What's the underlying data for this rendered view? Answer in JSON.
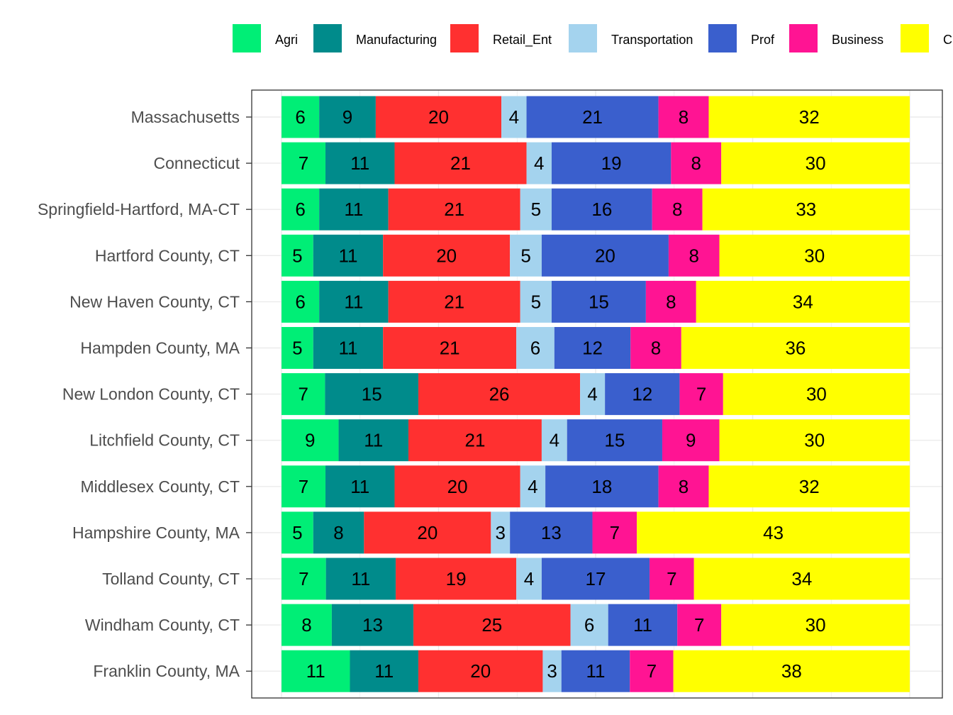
{
  "chart_data": {
    "type": "bar",
    "orientation": "horizontal",
    "stacked": true,
    "normalized": true,
    "title": "",
    "xlabel": "",
    "ylabel": "",
    "grid": true,
    "legend_position": "top",
    "categories": [
      "Massachusetts",
      "Connecticut",
      "Springfield-Hartford, MA-CT",
      "Hartford County, CT",
      "New Haven County, CT",
      "Hampden County, MA",
      "New London County, CT",
      "Litchfield County, CT",
      "Middlesex County, CT",
      "Hampshire County, MA",
      "Tolland County, CT",
      "Windham County, CT",
      "Franklin County, MA"
    ],
    "series": [
      {
        "name": "Agri",
        "color": "#00EE76",
        "values": [
          6,
          7,
          6,
          5,
          6,
          5,
          7,
          9,
          7,
          5,
          7,
          8,
          11
        ]
      },
      {
        "name": "Manufacturing",
        "color": "#008B8B",
        "values": [
          9,
          11,
          11,
          11,
          11,
          11,
          15,
          11,
          11,
          8,
          11,
          13,
          11
        ]
      },
      {
        "name": "Retail_Ent",
        "color": "#FF3030",
        "values": [
          20,
          21,
          21,
          20,
          21,
          21,
          26,
          21,
          20,
          20,
          19,
          25,
          20
        ]
      },
      {
        "name": "Transportation",
        "color": "#A4D3EE",
        "values": [
          4,
          4,
          5,
          5,
          5,
          6,
          4,
          4,
          4,
          3,
          4,
          6,
          3
        ]
      },
      {
        "name": "Prof",
        "color": "#3A5FCD",
        "values": [
          21,
          19,
          16,
          20,
          15,
          12,
          12,
          15,
          18,
          13,
          17,
          11,
          11
        ]
      },
      {
        "name": "Business",
        "color": "#FF1493",
        "values": [
          8,
          8,
          8,
          8,
          8,
          8,
          7,
          9,
          8,
          7,
          7,
          7,
          7
        ]
      },
      {
        "name": "C",
        "color": "#FFFF00",
        "values": [
          32,
          30,
          33,
          30,
          34,
          36,
          30,
          30,
          32,
          43,
          34,
          30,
          38
        ]
      }
    ]
  }
}
